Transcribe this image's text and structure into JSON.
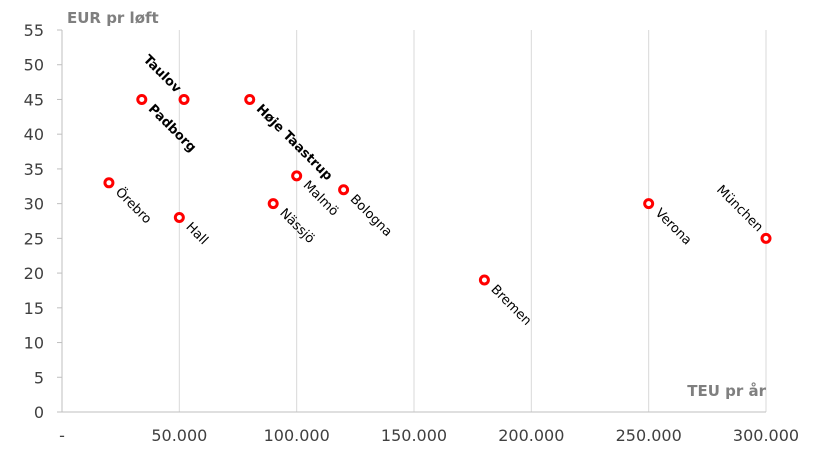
{
  "chart_data": {
    "type": "scatter",
    "ylabel": "EUR pr løft",
    "xlabel": "TEU pr år",
    "xlim": [
      0,
      300000
    ],
    "ylim": [
      0,
      55
    ],
    "x_ticks": [
      {
        "value": 0,
        "label": "-"
      },
      {
        "value": 50000,
        "label": "50.000"
      },
      {
        "value": 100000,
        "label": "100.000"
      },
      {
        "value": 150000,
        "label": "150.000"
      },
      {
        "value": 200000,
        "label": "200.000"
      },
      {
        "value": 250000,
        "label": "250.000"
      },
      {
        "value": 300000,
        "label": "300.000"
      }
    ],
    "y_ticks": [
      0,
      5,
      10,
      15,
      20,
      25,
      30,
      35,
      40,
      45,
      50,
      55
    ],
    "grid": {
      "vertical": true,
      "horizontal": false
    },
    "marker_color": "#ff0000",
    "points": [
      {
        "label": "Taulov",
        "x": 52000,
        "y": 45,
        "bold": true,
        "label_side": "upper-left"
      },
      {
        "label": "Padborg",
        "x": 34000,
        "y": 45,
        "bold": true,
        "label_side": "lower-right"
      },
      {
        "label": "Høje Taastrup",
        "x": 80000,
        "y": 45,
        "bold": true,
        "label_side": "lower-right"
      },
      {
        "label": "Örebro",
        "x": 20000,
        "y": 33,
        "bold": false,
        "label_side": "lower-right"
      },
      {
        "label": "Hall",
        "x": 50000,
        "y": 28,
        "bold": false,
        "label_side": "lower-right"
      },
      {
        "label": "Nässjö",
        "x": 90000,
        "y": 30,
        "bold": false,
        "label_side": "lower-right"
      },
      {
        "label": "Malmö",
        "x": 100000,
        "y": 34,
        "bold": false,
        "label_side": "lower-right"
      },
      {
        "label": "Bologna",
        "x": 120000,
        "y": 32,
        "bold": false,
        "label_side": "lower-right"
      },
      {
        "label": "Bremen",
        "x": 180000,
        "y": 19,
        "bold": false,
        "label_side": "lower-right"
      },
      {
        "label": "Verona",
        "x": 250000,
        "y": 30,
        "bold": false,
        "label_side": "lower-right"
      },
      {
        "label": "München",
        "x": 300000,
        "y": 25,
        "bold": false,
        "label_side": "upper-left"
      }
    ]
  }
}
